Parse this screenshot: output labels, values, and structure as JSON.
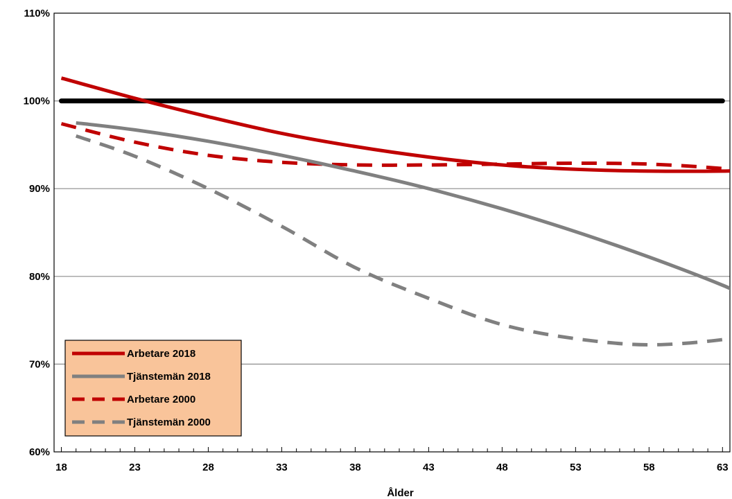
{
  "chart_data": {
    "type": "line",
    "title": "",
    "xlabel": "Ålder",
    "ylabel": "",
    "xlim": [
      18,
      64
    ],
    "ylim": [
      60,
      110
    ],
    "x_ticks": [
      18,
      23,
      28,
      33,
      38,
      43,
      48,
      53,
      58,
      63
    ],
    "y_ticks": [
      60,
      70,
      80,
      90,
      100,
      110
    ],
    "y_tick_labels": [
      "60%",
      "70%",
      "80%",
      "90%",
      "100%",
      "110%"
    ],
    "x_tick_labels": [
      "18",
      "23",
      "28",
      "33",
      "38",
      "43",
      "48",
      "53",
      "58",
      "63"
    ],
    "grid": "horizontal",
    "legend_position": "bottom-left",
    "legend_background": "#f9c49a",
    "reference_line": {
      "y": 100,
      "x_range": [
        18,
        63
      ],
      "color": "#000000"
    },
    "series": [
      {
        "name": "Arbetare 2018",
        "color": "#c00000",
        "style": "solid",
        "x": [
          18,
          23,
          28,
          33,
          38,
          43,
          48,
          53,
          58,
          63,
          64
        ],
        "values": [
          102.6,
          100.3,
          98.2,
          96.3,
          94.8,
          93.6,
          92.7,
          92.2,
          92.0,
          92.0,
          92.1
        ]
      },
      {
        "name": "Tjänstemän 2018",
        "color": "#808080",
        "style": "solid",
        "x": [
          19,
          23,
          28,
          33,
          38,
          43,
          48,
          53,
          58,
          63,
          64
        ],
        "values": [
          97.5,
          96.7,
          95.4,
          93.8,
          92.0,
          90.0,
          87.7,
          85.1,
          82.2,
          79.0,
          78.1
        ]
      },
      {
        "name": "Arbetare 2000",
        "color": "#c00000",
        "style": "dashed",
        "x": [
          18,
          23,
          28,
          33,
          38,
          43,
          48,
          53,
          58,
          63,
          64
        ],
        "values": [
          97.4,
          95.3,
          93.8,
          93.0,
          92.7,
          92.7,
          92.8,
          92.9,
          92.8,
          92.3,
          92.0
        ]
      },
      {
        "name": "Tjänstemän 2000",
        "color": "#808080",
        "style": "dashed",
        "x": [
          19,
          23,
          28,
          33,
          38,
          43,
          48,
          53,
          58,
          63,
          64
        ],
        "values": [
          96.0,
          93.7,
          90.0,
          85.7,
          81.0,
          77.5,
          74.5,
          72.9,
          72.2,
          72.8,
          73.5
        ]
      }
    ]
  }
}
